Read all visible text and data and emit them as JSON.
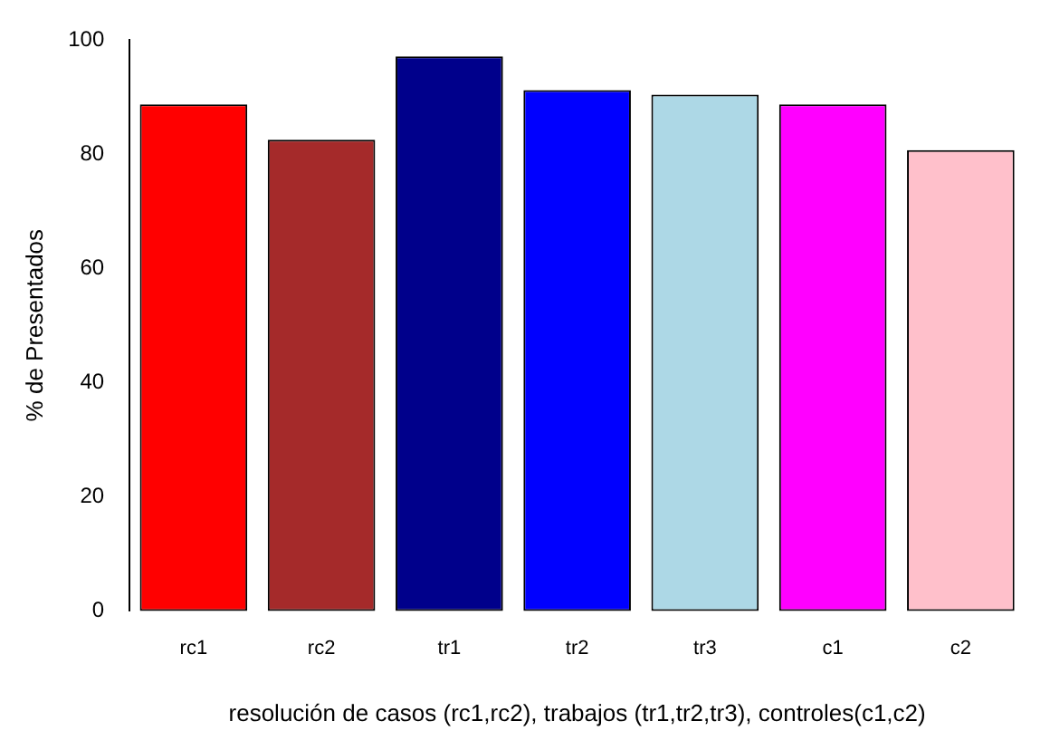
{
  "chart_data": {
    "type": "bar",
    "xlabel": "resolución de casos (rc1,rc2), trabajos (tr1,tr2,tr3), controles(c1,c2)",
    "ylabel": "% de Presentados",
    "categories": [
      "rc1",
      "rc2",
      "tr1",
      "tr2",
      "tr3",
      "c1",
      "c2"
    ],
    "values": [
      88.7,
      82.5,
      97.1,
      91.2,
      90.4,
      88.7,
      80.7
    ],
    "colors": [
      "#ff0000",
      "#a52a2a",
      "#00008b",
      "#0000ff",
      "#add8e6",
      "#ff00ff",
      "#ffc0cb"
    ],
    "ylim": [
      0,
      100
    ],
    "yticks": [
      0,
      20,
      40,
      60,
      80,
      100
    ],
    "grid": false,
    "legend": false
  }
}
